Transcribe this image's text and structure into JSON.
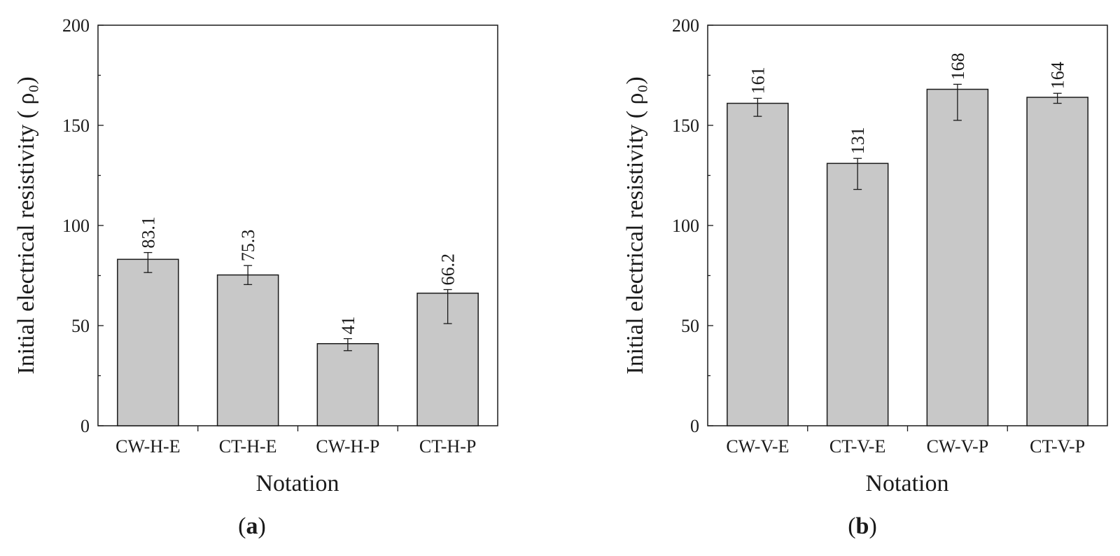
{
  "figure": {
    "colors": {
      "bar_fill": "#c8c8c8",
      "stroke": "#1a1a1a"
    }
  },
  "chart_data": [
    {
      "type": "bar",
      "panel_label": "a",
      "categories": [
        "CW-H-E",
        "CT-H-E",
        "CW-H-P",
        "CT-H-P"
      ],
      "values": [
        83.1,
        75.3,
        41,
        66.2
      ],
      "value_labels": [
        "83.1",
        "75.3",
        "41",
        "66.2"
      ],
      "error_low": [
        76.5,
        70.5,
        37.5,
        51
      ],
      "error_high": [
        86.5,
        80,
        43.5,
        68
      ],
      "xlabel": "Notation",
      "ylabel": "Initial electrical resistivity ( ρ₀)",
      "ylim": [
        0,
        200
      ],
      "yticks": [
        0,
        50,
        100,
        150,
        200
      ],
      "ytick_labels": [
        "0",
        "50",
        "100",
        "150",
        "200"
      ],
      "grid": false
    },
    {
      "type": "bar",
      "panel_label": "b",
      "categories": [
        "CW-V-E",
        "CT-V-E",
        "CW-V-P",
        "CT-V-P"
      ],
      "values": [
        161,
        131,
        168,
        164
      ],
      "value_labels": [
        "161",
        "131",
        "168",
        "164"
      ],
      "error_low": [
        154.5,
        118,
        152.5,
        161
      ],
      "error_high": [
        163.5,
        133.5,
        170.5,
        166
      ],
      "xlabel": "Notation",
      "ylabel": "Initial electrical resistivity ( ρ₀)",
      "ylim": [
        0,
        200
      ],
      "yticks": [
        0,
        50,
        100,
        150,
        200
      ],
      "ytick_labels": [
        "0",
        "50",
        "100",
        "150",
        "200"
      ],
      "grid": false
    }
  ]
}
